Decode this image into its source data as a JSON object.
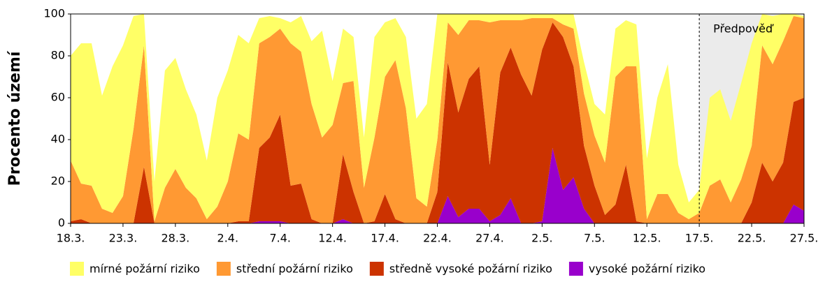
{
  "chart_data": {
    "type": "stacked_area",
    "y_label": "Procento území",
    "categories": [
      "18.3.",
      null,
      null,
      null,
      null,
      "23.3.",
      null,
      null,
      null,
      null,
      "28.3.",
      null,
      null,
      null,
      null,
      "2.4.",
      null,
      null,
      null,
      null,
      "7.4.",
      null,
      null,
      null,
      null,
      "12.4.",
      null,
      null,
      null,
      null,
      "17.4.",
      null,
      null,
      null,
      null,
      "22.4.",
      null,
      null,
      null,
      null,
      "27.4.",
      null,
      null,
      null,
      null,
      "2.5.",
      null,
      null,
      null,
      null,
      "7.5.",
      null,
      null,
      null,
      null,
      "12.5.",
      null,
      null,
      null,
      null,
      "17.5.",
      null,
      null,
      null,
      null,
      "22.5.",
      null,
      null,
      null,
      null,
      "27.5."
    ],
    "series": [
      {
        "name": "mírné požární riziko",
        "color": "#ffff66",
        "values": [
          50,
          67,
          68,
          54,
          70,
          72,
          54,
          15,
          19,
          56,
          53,
          47,
          40,
          28,
          52,
          53,
          47,
          46,
          12,
          10,
          5,
          10,
          17,
          30,
          51,
          21,
          26,
          21,
          24,
          48,
          26,
          20,
          34,
          38,
          49,
          60,
          4,
          10,
          3,
          3,
          4,
          3,
          3,
          3,
          2,
          2,
          2,
          5,
          7,
          15,
          15,
          23,
          23,
          22,
          20,
          29,
          46,
          62,
          23,
          8,
          11,
          42,
          43,
          39,
          46,
          49,
          15,
          23,
          13,
          1,
          1
        ]
      },
      {
        "name": "střední požární riziko",
        "color": "#ff9933",
        "values": [
          29,
          17,
          18,
          7,
          5,
          13,
          45,
          58,
          1,
          17,
          26,
          17,
          12,
          2,
          8,
          20,
          42,
          39,
          50,
          48,
          41,
          68,
          63,
          55,
          41,
          47,
          34,
          53,
          17,
          40,
          56,
          76,
          55,
          12,
          8,
          25,
          19,
          37,
          28,
          22,
          68,
          25,
          13,
          26,
          37,
          15,
          2,
          6,
          18,
          25,
          24,
          25,
          61,
          47,
          74,
          2,
          14,
          14,
          5,
          2,
          5,
          18,
          21,
          10,
          21,
          27,
          56,
          56,
          58,
          41,
          38
        ]
      },
      {
        "name": "středně vysoké požární riziko",
        "color": "#cc3300",
        "values": [
          1,
          2,
          0,
          0,
          0,
          0,
          0,
          27,
          0,
          0,
          0,
          0,
          0,
          0,
          0,
          0,
          1,
          1,
          35,
          40,
          51,
          18,
          19,
          2,
          0,
          0,
          31,
          15,
          0,
          1,
          14,
          2,
          0,
          0,
          0,
          15,
          64,
          50,
          62,
          68,
          27,
          68,
          72,
          71,
          61,
          82,
          60,
          73,
          53,
          30,
          18,
          4,
          9,
          28,
          1,
          0,
          0,
          0,
          0,
          0,
          0,
          0,
          0,
          0,
          0,
          10,
          29,
          20,
          29,
          49,
          54
        ]
      },
      {
        "name": "vysoké požární riziko",
        "color": "#9900cc",
        "values": [
          0,
          0,
          0,
          0,
          0,
          0,
          0,
          0,
          0,
          0,
          0,
          0,
          0,
          0,
          0,
          0,
          0,
          0,
          1,
          1,
          1,
          0,
          0,
          0,
          0,
          0,
          2,
          0,
          0,
          0,
          0,
          0,
          0,
          0,
          0,
          0,
          13,
          3,
          7,
          7,
          1,
          4,
          12,
          0,
          0,
          1,
          36,
          16,
          22,
          7,
          0,
          0,
          0,
          0,
          0,
          0,
          0,
          0,
          0,
          0,
          0,
          0,
          0,
          0,
          0,
          0,
          0,
          0,
          0,
          9,
          6
        ]
      }
    ],
    "ylim": [
      0,
      100
    ],
    "yticks": [
      0,
      20,
      40,
      60,
      80,
      100
    ],
    "forecast": {
      "label": "Předpověď",
      "start": "17.5."
    }
  }
}
